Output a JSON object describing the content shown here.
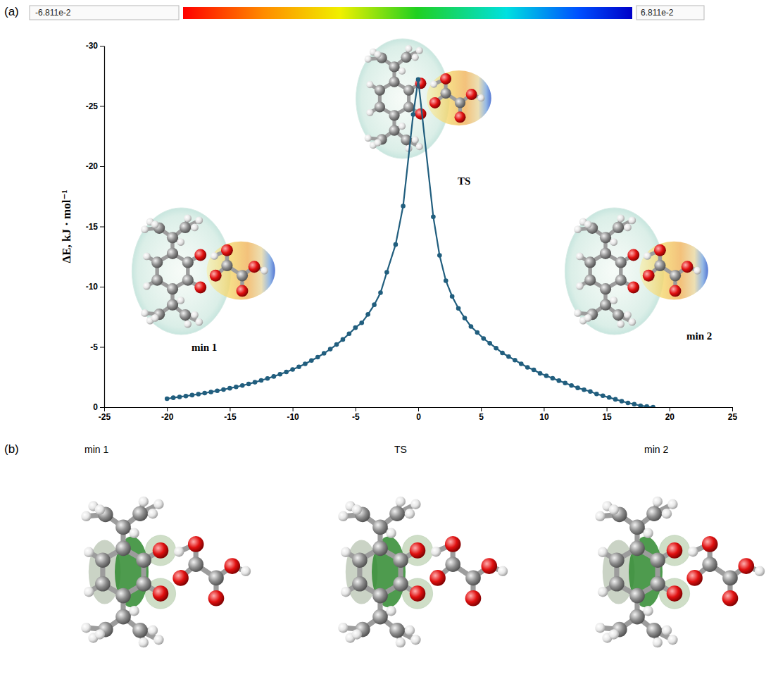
{
  "chart_data": {
    "type": "line",
    "panel_label": "(a)",
    "y_label": "ΔE, kJ · mol⁻¹",
    "x": [
      -20,
      -19.5,
      -19,
      -18.5,
      -18,
      -17.5,
      -17,
      -16.5,
      -16,
      -15.5,
      -15,
      -14.5,
      -14,
      -13.5,
      -13,
      -12.5,
      -12,
      -11.5,
      -11,
      -10.5,
      -10,
      -9.5,
      -9,
      -8.5,
      -8,
      -7.5,
      -7,
      -6.5,
      -6,
      -5.5,
      -5,
      -4.5,
      -4,
      -3.5,
      -3,
      -2.5,
      -1.8,
      -1.2,
      -0.4,
      0,
      1.2,
      1.7,
      2.2,
      2.7,
      3.2,
      3.7,
      4.2,
      4.7,
      5.2,
      5.7,
      6.2,
      6.7,
      7.2,
      7.7,
      8.2,
      8.7,
      9.2,
      9.7,
      10.2,
      10.7,
      11.2,
      11.7,
      12.2,
      12.7,
      13.2,
      13.7,
      14.2,
      14.7,
      15.2,
      15.7,
      16.2,
      16.7,
      17.2,
      17.7,
      18.2,
      18.7
    ],
    "series": [
      {
        "color": "#215e7e",
        "marker": "circle",
        "values": [
          -0.7,
          -0.78,
          -0.85,
          -0.92,
          -1.0,
          -1.08,
          -1.17,
          -1.26,
          -1.36,
          -1.46,
          -1.57,
          -1.68,
          -1.8,
          -1.93,
          -2.07,
          -2.22,
          -2.38,
          -2.55,
          -2.73,
          -2.92,
          -3.13,
          -3.35,
          -3.6,
          -3.87,
          -4.15,
          -4.47,
          -4.82,
          -5.2,
          -5.62,
          -6.1,
          -6.6,
          -7.0,
          -7.7,
          -8.5,
          -9.5,
          -11.2,
          -13.5,
          -16.7,
          -24.3,
          -27.2,
          -15.8,
          -12.6,
          -10.5,
          -9.2,
          -8.2,
          -7.4,
          -6.7,
          -6.2,
          -5.7,
          -5.3,
          -4.9,
          -4.5,
          -4.2,
          -3.9,
          -3.6,
          -3.3,
          -3.1,
          -2.8,
          -2.6,
          -2.4,
          -2.2,
          -2.0,
          -1.8,
          -1.6,
          -1.45,
          -1.3,
          -1.1,
          -0.95,
          -0.8,
          -0.65,
          -0.5,
          -0.35,
          -0.25,
          -0.12,
          -0.05,
          0.0
        ]
      }
    ],
    "xlim": [
      -25,
      25
    ],
    "xticks": [
      -25,
      -20,
      -15,
      -10,
      -5,
      0,
      5,
      10,
      15,
      20,
      25
    ],
    "ylim": [
      0,
      -30
    ],
    "yticks": [
      0,
      -5,
      -10,
      -15,
      -20,
      -25,
      -30
    ],
    "annotations": [
      "min 1",
      "TS",
      "min 2"
    ],
    "colorbar": {
      "range": [
        -0.06811,
        0.06811
      ],
      "ticks": [
        {
          "value": -0.06811,
          "label": "-6.811e-2"
        },
        {
          "value": 0.06811,
          "label": "6.811e-2"
        }
      ]
    }
  },
  "panel_b": {
    "label": "(b)",
    "structures": [
      "min 1",
      "TS",
      "min 2"
    ]
  }
}
